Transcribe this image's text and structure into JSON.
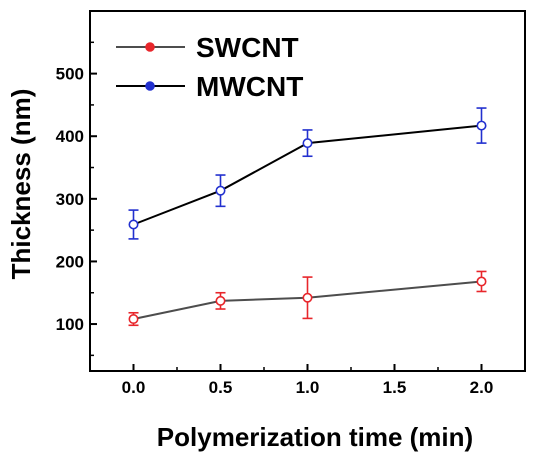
{
  "chart_data": {
    "type": "line",
    "title": "",
    "xlabel": "Polymerization time (min)",
    "ylabel": "Thickness (nm)",
    "xlim": [
      -0.25,
      2.25
    ],
    "ylim": [
      25,
      600
    ],
    "x_ticks": [
      0.0,
      0.5,
      1.0,
      1.5,
      2.0
    ],
    "x_tick_labels": [
      "0.0",
      "0.5",
      "1.0",
      "1.5",
      "2.0"
    ],
    "y_ticks": [
      100,
      200,
      300,
      400,
      500
    ],
    "y_tick_labels": [
      "100",
      "200",
      "300",
      "400",
      "500"
    ],
    "grid": false,
    "legend": "top-left",
    "series": [
      {
        "name": "SWCNT",
        "line_color": "#4d4d4d",
        "marker_color": "#e8262b",
        "x": [
          0.0,
          0.5,
          1.0,
          2.0
        ],
        "y": [
          108,
          137,
          142,
          168
        ],
        "err": [
          10,
          13,
          33,
          16
        ]
      },
      {
        "name": "MWCNT",
        "line_color": "#000000",
        "marker_color": "#2230cf",
        "x": [
          0.0,
          0.5,
          1.0,
          2.0
        ],
        "y": [
          259,
          313,
          389,
          417
        ],
        "err": [
          23,
          25,
          21,
          28
        ]
      }
    ]
  }
}
